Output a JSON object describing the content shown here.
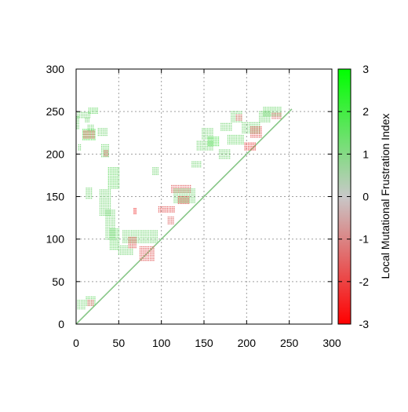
{
  "chart_data": {
    "type": "heatmap",
    "title": "",
    "xlabel": "",
    "ylabel": "",
    "xlim": [
      0,
      300
    ],
    "ylim": [
      0,
      300
    ],
    "x_ticks": [
      "0",
      "50",
      "100",
      "150",
      "200",
      "250",
      "300"
    ],
    "y_ticks": [
      "0",
      "50",
      "100",
      "150",
      "200",
      "250",
      "300"
    ],
    "grid": true,
    "colorbar": {
      "label": "Local Mutational Frustration Index",
      "range": [
        -3,
        3
      ],
      "ticks": [
        "3",
        "2",
        "1",
        "0",
        "-1",
        "-2",
        "-3"
      ],
      "colors": {
        "high": "#00ff00",
        "mid": "#c8c8c8",
        "low": "#ff0000"
      }
    },
    "diagonal": {
      "from": [
        0,
        0
      ],
      "to": [
        253,
        253
      ],
      "value": 0
    },
    "segments": [
      {
        "x": [
          1,
          3
        ],
        "y": [
          230,
          245
        ],
        "value": 1.0
      },
      {
        "x": [
          2,
          16
        ],
        "y": [
          243,
          250
        ],
        "value": 1.0
      },
      {
        "x": [
          11,
          16
        ],
        "y": [
          238,
          243
        ],
        "value": 1.0
      },
      {
        "x": [
          15,
          25
        ],
        "y": [
          248,
          255
        ],
        "value": 1.2
      },
      {
        "x": [
          8,
          22
        ],
        "y": [
          217,
          229
        ],
        "value": 1.6
      },
      {
        "x": [
          9,
          21
        ],
        "y": [
          219,
          228
        ],
        "value": -1.4
      },
      {
        "x": [
          14,
          21
        ],
        "y": [
          228,
          235
        ],
        "value": 1.0
      },
      {
        "x": [
          3,
          6
        ],
        "y": [
          205,
          212
        ],
        "value": 1.0
      },
      {
        "x": [
          26,
          37
        ],
        "y": [
          222,
          230
        ],
        "value": 1.0
      },
      {
        "x": [
          30,
          38
        ],
        "y": [
          197,
          212
        ],
        "value": 1.1
      },
      {
        "x": [
          33,
          38
        ],
        "y": [
          198,
          205
        ],
        "value": -1.3
      },
      {
        "x": [
          12,
          19
        ],
        "y": [
          148,
          160
        ],
        "value": 1.0
      },
      {
        "x": [
          28,
          40
        ],
        "y": [
          128,
          158
        ],
        "value": 1.0
      },
      {
        "x": [
          38,
          50
        ],
        "y": [
          160,
          185
        ],
        "value": 1.2
      },
      {
        "x": [
          35,
          45
        ],
        "y": [
          100,
          135
        ],
        "value": 1.0
      },
      {
        "x": [
          40,
          50
        ],
        "y": [
          88,
          112
        ],
        "value": 1.2
      },
      {
        "x": [
          50,
          66
        ],
        "y": [
          82,
          92
        ],
        "value": 1.0
      },
      {
        "x": [
          55,
          95
        ],
        "y": [
          96,
          110
        ],
        "value": 1.0
      },
      {
        "x": [
          62,
          70
        ],
        "y": [
          90,
          102
        ],
        "value": -1.6
      },
      {
        "x": [
          75,
          92
        ],
        "y": [
          75,
          92
        ],
        "value": -1.5
      },
      {
        "x": [
          90,
          96
        ],
        "y": [
          176,
          184
        ],
        "value": 1.0
      },
      {
        "x": [
          68,
          70
        ],
        "y": [
          130,
          136
        ],
        "value": -2.2
      },
      {
        "x": [
          97,
          115
        ],
        "y": [
          132,
          138
        ],
        "value": -1.6
      },
      {
        "x": [
          112,
          135
        ],
        "y": [
          155,
          163
        ],
        "value": -1.4
      },
      {
        "x": [
          120,
          133
        ],
        "y": [
          142,
          150
        ],
        "value": -1.8
      },
      {
        "x": [
          115,
          140
        ],
        "y": [
          143,
          160
        ],
        "value": 1.0
      },
      {
        "x": [
          108,
          115
        ],
        "y": [
          118,
          126
        ],
        "value": -1.3
      },
      {
        "x": [
          2,
          10
        ],
        "y": [
          18,
          28
        ],
        "value": 1.0
      },
      {
        "x": [
          12,
          22
        ],
        "y": [
          22,
          32
        ],
        "value": 1.2
      },
      {
        "x": [
          14,
          20
        ],
        "y": [
          22,
          28
        ],
        "value": -1.3
      },
      {
        "x": [
          142,
          160
        ],
        "y": [
          205,
          215
        ],
        "value": 1.0
      },
      {
        "x": [
          148,
          160
        ],
        "y": [
          218,
          230
        ],
        "value": 1.0
      },
      {
        "x": [
          155,
          168
        ],
        "y": [
          210,
          220
        ],
        "value": 1.5
      },
      {
        "x": [
          168,
          180
        ],
        "y": [
          195,
          205
        ],
        "value": 1.0
      },
      {
        "x": [
          178,
          196
        ],
        "y": [
          212,
          222
        ],
        "value": 1.1
      },
      {
        "x": [
          182,
          195
        ],
        "y": [
          238,
          250
        ],
        "value": 1.0
      },
      {
        "x": [
          188,
          195
        ],
        "y": [
          240,
          246
        ],
        "value": -1.3
      },
      {
        "x": [
          195,
          215
        ],
        "y": [
          225,
          238
        ],
        "value": 1.0
      },
      {
        "x": [
          205,
          218
        ],
        "y": [
          220,
          232
        ],
        "value": -1.6
      },
      {
        "x": [
          198,
          210
        ],
        "y": [
          205,
          214
        ],
        "value": -1.8
      },
      {
        "x": [
          215,
          228
        ],
        "y": [
          238,
          250
        ],
        "value": 1.0
      },
      {
        "x": [
          220,
          240
        ],
        "y": [
          245,
          255
        ],
        "value": 1.1
      },
      {
        "x": [
          230,
          240
        ],
        "y": [
          242,
          248
        ],
        "value": -1.2
      },
      {
        "x": [
          136,
          146
        ],
        "y": [
          185,
          192
        ],
        "value": 1.0
      },
      {
        "x": [
          170,
          182
        ],
        "y": [
          228,
          236
        ],
        "value": 1.0
      }
    ]
  }
}
